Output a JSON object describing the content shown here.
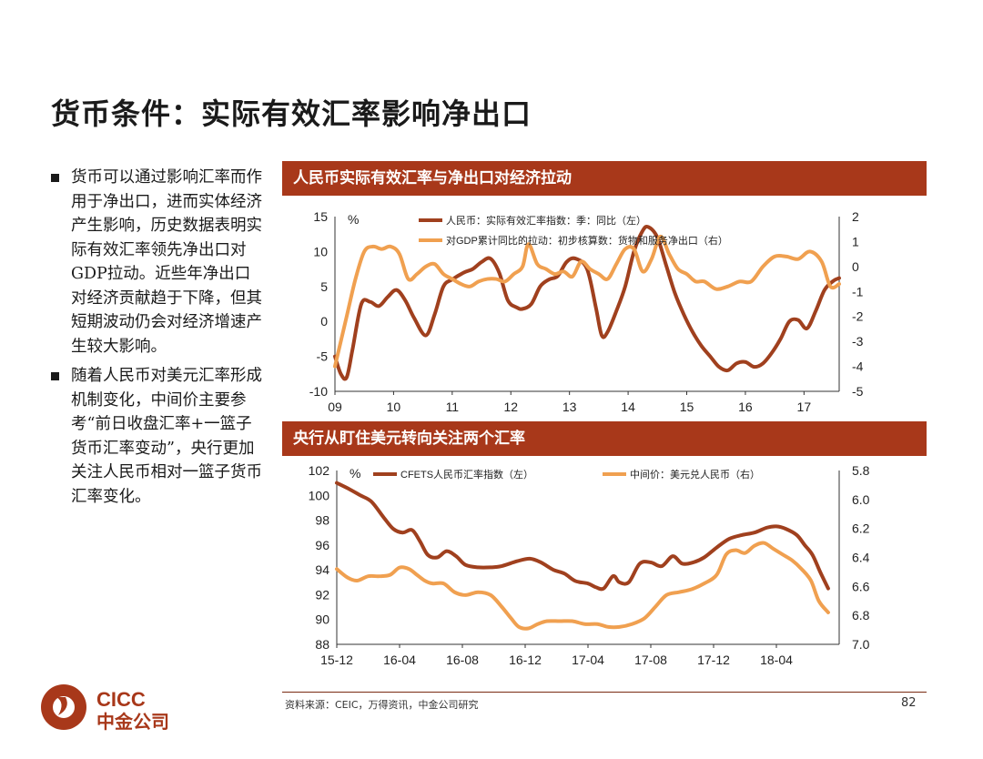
{
  "page": {
    "title": "货币条件：实际有效汇率影响净出口",
    "bullets": [
      "货币可以通过影响汇率而作用于净出口，进而实体经济产生影响，历史数据表明实际有效汇率领先净出口对GDP拉动。近些年净出口对经济贡献趋于下降，但其短期波动仍会对经济增速产生较大影响。",
      "随着人民币对美元汇率形成机制变化，中间价主要参考“前日收盘汇率+一篮子货币汇率变动”，央行更加关注人民币相对一篮子货币汇率变化。"
    ],
    "source": "资料来源：CEIC，万得资讯，中金公司研究",
    "page_number": "82",
    "logo": {
      "text_en": "CICC",
      "text_cn": "中金公司"
    }
  },
  "colors": {
    "brown": "#a0401e",
    "orange": "#f0a050",
    "header": "#a8381a"
  },
  "chart_data": [
    {
      "type": "line",
      "title": "人民币实际有效汇率与净出口对经济拉动",
      "unit_label": "%",
      "x_ticks": [
        "09",
        "10",
        "11",
        "12",
        "13",
        "14",
        "15",
        "16",
        "17"
      ],
      "xlim": [
        2009.0,
        2017.6
      ],
      "left_axis": {
        "ticks": [
          "15",
          "10",
          "5",
          "0",
          "-5",
          "-10"
        ],
        "ylim": [
          -10,
          15
        ]
      },
      "right_axis": {
        "ticks": [
          "2",
          "1",
          "0",
          "-1",
          "-2",
          "-3",
          "-4",
          "-5"
        ],
        "ylim": [
          -5,
          2
        ]
      },
      "series": [
        {
          "name": "人民币：实际有效汇率指数：季：同比（左）",
          "axis": "left",
          "color": "#a0401e",
          "x": [
            2009.0,
            2009.1,
            2009.2,
            2009.3,
            2009.45,
            2009.6,
            2009.75,
            2009.9,
            2010.05,
            2010.2,
            2010.35,
            2010.55,
            2010.7,
            2010.85,
            2011.0,
            2011.2,
            2011.35,
            2011.5,
            2011.65,
            2011.8,
            2011.95,
            2012.1,
            2012.2,
            2012.35,
            2012.5,
            2012.65,
            2012.8,
            2012.95,
            2013.1,
            2013.3,
            2013.45,
            2013.55,
            2013.65,
            2013.8,
            2013.95,
            2014.1,
            2014.25,
            2014.35,
            2014.5,
            2014.65,
            2014.8,
            2014.95,
            2015.1,
            2015.25,
            2015.4,
            2015.55,
            2015.7,
            2015.85,
            2016.0,
            2016.15,
            2016.3,
            2016.45,
            2016.6,
            2016.75,
            2016.9,
            2017.05,
            2017.2,
            2017.35,
            2017.5,
            2017.6
          ],
          "y": [
            -5,
            -7.5,
            -8,
            -4,
            2.5,
            2.8,
            2.2,
            3.5,
            4.5,
            3,
            0.5,
            -2,
            1,
            5,
            6,
            7,
            7.5,
            8.5,
            9,
            7,
            3,
            2,
            1.8,
            2.5,
            5,
            6,
            6.5,
            8.5,
            9,
            7.5,
            2,
            -2,
            -1.5,
            1.5,
            5,
            10,
            13,
            13.5,
            12,
            8,
            4,
            1,
            -1.5,
            -3.5,
            -5,
            -6.5,
            -7,
            -6,
            -5.8,
            -6.5,
            -6,
            -4.5,
            -2.5,
            0,
            0.2,
            -1,
            1.5,
            4.5,
            5.8,
            6.2
          ]
        },
        {
          "name": "对GDP累计同比的拉动：初步核算数：货物和服务净出口（右）",
          "axis": "right",
          "color": "#f0a050",
          "x": [
            2009.0,
            2009.2,
            2009.35,
            2009.5,
            2009.65,
            2009.8,
            2009.95,
            2010.1,
            2010.25,
            2010.4,
            2010.55,
            2010.7,
            2010.85,
            2011.0,
            2011.15,
            2011.3,
            2011.45,
            2011.6,
            2011.75,
            2011.9,
            2012.05,
            2012.2,
            2012.3,
            2012.45,
            2012.6,
            2012.75,
            2012.9,
            2013.05,
            2013.2,
            2013.35,
            2013.5,
            2013.65,
            2013.8,
            2013.95,
            2014.1,
            2014.25,
            2014.4,
            2014.55,
            2014.7,
            2014.85,
            2015.0,
            2015.15,
            2015.3,
            2015.5,
            2015.7,
            2015.9,
            2016.1,
            2016.3,
            2016.5,
            2016.7,
            2016.9,
            2017.1,
            2017.3,
            2017.45,
            2017.6
          ],
          "y": [
            -4,
            -2,
            -0.5,
            0.6,
            0.8,
            0.7,
            0.8,
            0.5,
            -0.5,
            -0.3,
            0,
            0.1,
            -0.3,
            -0.5,
            -0.7,
            -0.8,
            -0.6,
            -0.5,
            -0.5,
            -0.6,
            -0.3,
            0,
            0.9,
            0.1,
            -0.1,
            -0.3,
            -0.2,
            -0.4,
            0.2,
            -0.1,
            -0.3,
            -0.5,
            0.1,
            0.7,
            0.7,
            -0.2,
            0.3,
            1.2,
            0.5,
            -0.1,
            -0.3,
            -0.6,
            -0.6,
            -0.9,
            -0.8,
            -0.6,
            -0.6,
            0,
            0.4,
            0.4,
            0.3,
            0.6,
            0.2,
            -0.8,
            -0.7
          ]
        }
      ]
    },
    {
      "type": "line",
      "title": "央行从盯住美元转向关注两个汇率",
      "unit_label": "%",
      "x_ticks": [
        "15-12",
        "16-04",
        "16-08",
        "16-12",
        "17-04",
        "17-08",
        "17-12",
        "18-04"
      ],
      "xlim": [
        0,
        32
      ],
      "left_axis": {
        "ticks": [
          "102",
          "100",
          "98",
          "96",
          "94",
          "92",
          "90",
          "88"
        ],
        "ylim": [
          88,
          102
        ]
      },
      "right_axis": {
        "ticks": [
          "5.8",
          "6.0",
          "6.2",
          "6.4",
          "6.6",
          "6.8",
          "7.0"
        ],
        "ylim": [
          5.8,
          7.0
        ],
        "inverted": true
      },
      "series": [
        {
          "name": "CFETS人民币汇率指数（左）",
          "axis": "left",
          "color": "#a0401e",
          "x": [
            0,
            0.8,
            1.5,
            2.2,
            3,
            3.6,
            4.2,
            4.8,
            5.3,
            5.8,
            6.4,
            7,
            7.6,
            8.2,
            9,
            9.8,
            10.5,
            11.5,
            12.3,
            13,
            13.8,
            14.5,
            15.2,
            16,
            16.5,
            17,
            17.6,
            18,
            18.6,
            19.3,
            20,
            20.7,
            21.4,
            22,
            22.7,
            23.4,
            24.2,
            25,
            25.8,
            26.6,
            27.4,
            28,
            28.6,
            29.3,
            29.8,
            30.3,
            30.8,
            31.3
          ],
          "y": [
            101,
            100.5,
            100,
            99.5,
            98.2,
            97.3,
            97,
            97.2,
            96.3,
            95.2,
            95,
            95.5,
            95.1,
            94.4,
            94.2,
            94.2,
            94.3,
            94.7,
            94.9,
            94.6,
            94,
            93.7,
            93.1,
            92.9,
            92.6,
            92.5,
            93.5,
            93,
            93,
            94.5,
            94.6,
            94.3,
            95.1,
            94.5,
            94.6,
            95,
            95.8,
            96.5,
            96.8,
            97,
            97.4,
            97.5,
            97.3,
            96.8,
            96,
            95.2,
            93.8,
            92.5
          ]
        },
        {
          "name": "中间价：美元兑人民币（右）",
          "axis": "right",
          "color": "#f0a050",
          "x": [
            0,
            0.7,
            1.3,
            2,
            2.7,
            3.4,
            4,
            4.6,
            5.1,
            5.6,
            6.1,
            6.8,
            7.5,
            8.2,
            9,
            9.8,
            10.5,
            11.1,
            11.6,
            12.2,
            12.8,
            13.4,
            14.2,
            15,
            15.8,
            16.6,
            17.3,
            18,
            18.8,
            19.6,
            20.3,
            21,
            21.8,
            22.6,
            23.4,
            24.2,
            24.8,
            25.4,
            26,
            26.6,
            27.2,
            27.8,
            28.4,
            29,
            29.6,
            30.2,
            30.7,
            31.3
          ],
          "y": [
            6.48,
            6.54,
            6.56,
            6.53,
            6.53,
            6.52,
            6.47,
            6.48,
            6.52,
            6.56,
            6.58,
            6.58,
            6.64,
            6.66,
            6.64,
            6.66,
            6.74,
            6.82,
            6.88,
            6.89,
            6.86,
            6.84,
            6.84,
            6.84,
            6.86,
            6.86,
            6.88,
            6.88,
            6.86,
            6.82,
            6.74,
            6.66,
            6.64,
            6.62,
            6.58,
            6.52,
            6.38,
            6.35,
            6.37,
            6.32,
            6.3,
            6.34,
            6.38,
            6.42,
            6.48,
            6.56,
            6.7,
            6.78
          ]
        }
      ]
    }
  ]
}
